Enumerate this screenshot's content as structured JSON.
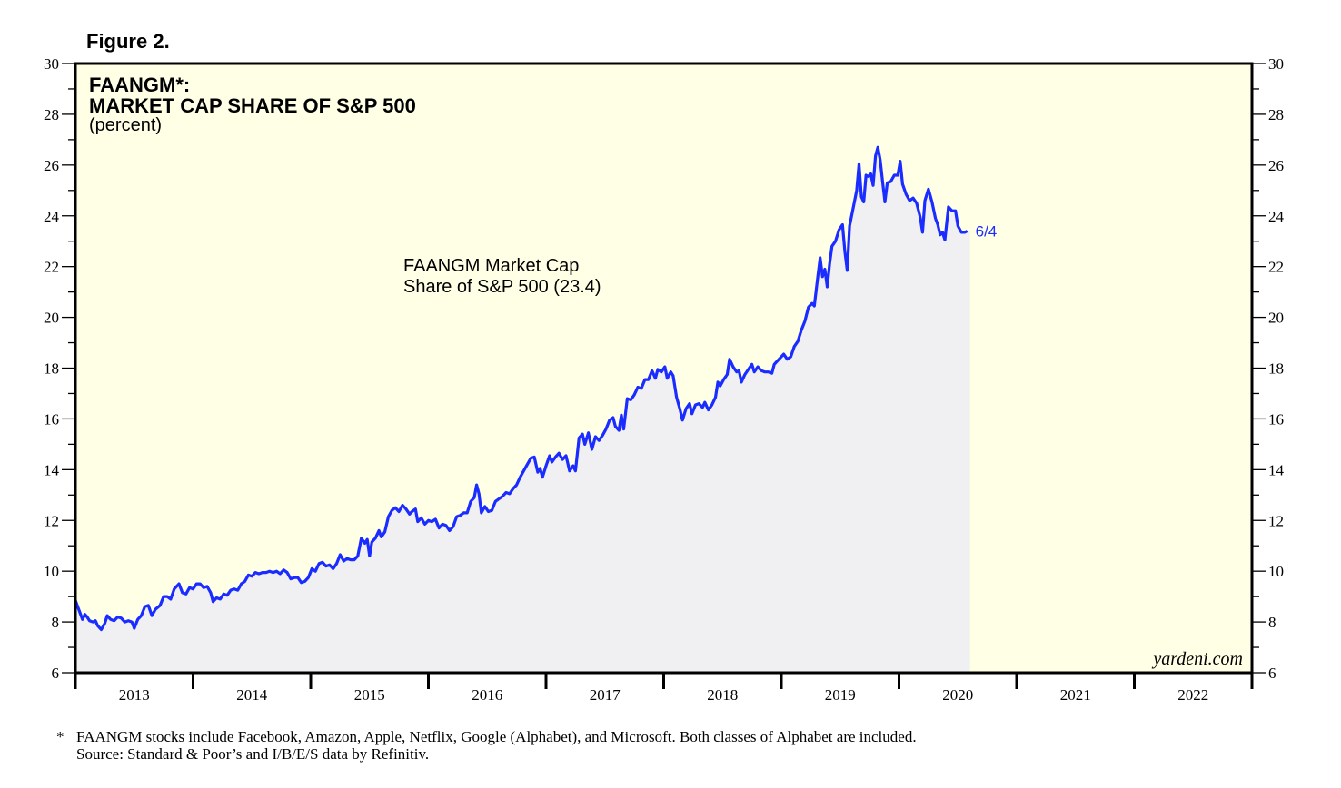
{
  "figure_label": "Figure 2.",
  "colors": {
    "plot_background": "#ffffe6",
    "area_fill": "#f0f0f2",
    "line": "#1a2cff",
    "axis": "#000000"
  },
  "footnotes": {
    "line1_marker": "*",
    "line1": "FAANGM stocks include Facebook, Amazon, Apple, Netflix, Google (Alphabet), and Microsoft. Both classes of Alphabet are included.",
    "line2": "Source: Standard & Poor’s and I/B/E/S data by Refinitiv."
  },
  "chart_data": {
    "type": "area",
    "title_line1": "FAANGM*:",
    "title_line2": "MARKET CAP SHARE OF S&P 500",
    "subtitle": "(percent)",
    "xlabel": "",
    "ylabel": "",
    "xlim": [
      2013,
      2023
    ],
    "ylim": [
      6,
      30
    ],
    "y_ticks_major": [
      6,
      8,
      10,
      12,
      14,
      16,
      18,
      20,
      22,
      24,
      26,
      28,
      30
    ],
    "y_tick_labels": [
      "6",
      "8",
      "10",
      "12",
      "14",
      "16",
      "18",
      "20",
      "22",
      "24",
      "26",
      "28",
      "30"
    ],
    "x_tick_labels": [
      "2013",
      "2014",
      "2015",
      "2016",
      "2017",
      "2018",
      "2019",
      "2020",
      "2021",
      "2022"
    ],
    "grid": false,
    "annotation": {
      "line1": "FAANGM Market Cap",
      "line2": "Share of S&P 500 (23.4)"
    },
    "end_label": "6/4",
    "source_credit": "yardeni.com",
    "series": [
      {
        "name": "FAANGM Market Cap Share of S&P 500",
        "latest_value": 23.4,
        "points": [
          [
            2013.0,
            8.85
          ],
          [
            2013.02,
            8.6
          ],
          [
            2013.04,
            8.35
          ],
          [
            2013.06,
            8.1
          ],
          [
            2013.08,
            8.3
          ],
          [
            2013.1,
            8.2
          ],
          [
            2013.12,
            8.05
          ],
          [
            2013.15,
            8.0
          ],
          [
            2013.17,
            8.05
          ],
          [
            2013.19,
            7.85
          ],
          [
            2013.22,
            7.7
          ],
          [
            2013.25,
            7.95
          ],
          [
            2013.27,
            8.25
          ],
          [
            2013.3,
            8.1
          ],
          [
            2013.33,
            8.05
          ],
          [
            2013.36,
            8.2
          ],
          [
            2013.39,
            8.15
          ],
          [
            2013.42,
            8.0
          ],
          [
            2013.45,
            8.05
          ],
          [
            2013.48,
            8.0
          ],
          [
            2013.5,
            7.75
          ],
          [
            2013.53,
            8.1
          ],
          [
            2013.56,
            8.25
          ],
          [
            2013.59,
            8.6
          ],
          [
            2013.62,
            8.65
          ],
          [
            2013.65,
            8.25
          ],
          [
            2013.68,
            8.5
          ],
          [
            2013.72,
            8.65
          ],
          [
            2013.75,
            9.0
          ],
          [
            2013.78,
            9.0
          ],
          [
            2013.81,
            8.9
          ],
          [
            2013.84,
            9.3
          ],
          [
            2013.88,
            9.5
          ],
          [
            2013.91,
            9.15
          ],
          [
            2013.94,
            9.1
          ],
          [
            2013.97,
            9.35
          ],
          [
            2014.0,
            9.3
          ],
          [
            2014.03,
            9.5
          ],
          [
            2014.06,
            9.5
          ],
          [
            2014.09,
            9.35
          ],
          [
            2014.12,
            9.4
          ],
          [
            2014.15,
            9.15
          ],
          [
            2014.17,
            8.8
          ],
          [
            2014.2,
            8.95
          ],
          [
            2014.23,
            8.9
          ],
          [
            2014.26,
            9.1
          ],
          [
            2014.29,
            9.05
          ],
          [
            2014.32,
            9.25
          ],
          [
            2014.35,
            9.3
          ],
          [
            2014.38,
            9.25
          ],
          [
            2014.41,
            9.5
          ],
          [
            2014.44,
            9.6
          ],
          [
            2014.47,
            9.85
          ],
          [
            2014.5,
            9.8
          ],
          [
            2014.53,
            9.95
          ],
          [
            2014.56,
            9.9
          ],
          [
            2014.59,
            9.95
          ],
          [
            2014.62,
            9.95
          ],
          [
            2014.65,
            10.0
          ],
          [
            2014.68,
            9.95
          ],
          [
            2014.71,
            10.0
          ],
          [
            2014.74,
            9.9
          ],
          [
            2014.77,
            10.05
          ],
          [
            2014.8,
            9.95
          ],
          [
            2014.83,
            9.7
          ],
          [
            2014.86,
            9.75
          ],
          [
            2014.89,
            9.75
          ],
          [
            2014.92,
            9.55
          ],
          [
            2014.95,
            9.6
          ],
          [
            2014.98,
            9.75
          ],
          [
            2015.01,
            10.1
          ],
          [
            2015.04,
            10.0
          ],
          [
            2015.07,
            10.3
          ],
          [
            2015.1,
            10.35
          ],
          [
            2015.13,
            10.2
          ],
          [
            2015.16,
            10.25
          ],
          [
            2015.19,
            10.1
          ],
          [
            2015.22,
            10.3
          ],
          [
            2015.25,
            10.65
          ],
          [
            2015.28,
            10.4
          ],
          [
            2015.31,
            10.5
          ],
          [
            2015.34,
            10.45
          ],
          [
            2015.37,
            10.45
          ],
          [
            2015.4,
            10.6
          ],
          [
            2015.43,
            11.3
          ],
          [
            2015.46,
            11.1
          ],
          [
            2015.48,
            11.25
          ],
          [
            2015.5,
            10.6
          ],
          [
            2015.52,
            11.15
          ],
          [
            2015.55,
            11.3
          ],
          [
            2015.58,
            11.6
          ],
          [
            2015.6,
            11.35
          ],
          [
            2015.63,
            11.55
          ],
          [
            2015.66,
            12.15
          ],
          [
            2015.69,
            12.4
          ],
          [
            2015.72,
            12.5
          ],
          [
            2015.75,
            12.35
          ],
          [
            2015.78,
            12.6
          ],
          [
            2015.81,
            12.45
          ],
          [
            2015.84,
            12.25
          ],
          [
            2015.86,
            12.35
          ],
          [
            2015.89,
            12.45
          ],
          [
            2015.91,
            11.95
          ],
          [
            2015.94,
            12.1
          ],
          [
            2015.97,
            11.85
          ],
          [
            2016.0,
            12.0
          ],
          [
            2016.03,
            11.95
          ],
          [
            2016.06,
            12.05
          ],
          [
            2016.09,
            11.7
          ],
          [
            2016.12,
            11.85
          ],
          [
            2016.15,
            11.8
          ],
          [
            2016.18,
            11.6
          ],
          [
            2016.21,
            11.75
          ],
          [
            2016.24,
            12.15
          ],
          [
            2016.27,
            12.2
          ],
          [
            2016.3,
            12.3
          ],
          [
            2016.33,
            12.3
          ],
          [
            2016.36,
            12.75
          ],
          [
            2016.39,
            12.9
          ],
          [
            2016.41,
            13.4
          ],
          [
            2016.43,
            13.05
          ],
          [
            2016.45,
            12.3
          ],
          [
            2016.48,
            12.55
          ],
          [
            2016.51,
            12.35
          ],
          [
            2016.54,
            12.4
          ],
          [
            2016.57,
            12.75
          ],
          [
            2016.6,
            12.85
          ],
          [
            2016.63,
            12.95
          ],
          [
            2016.66,
            13.1
          ],
          [
            2016.69,
            13.05
          ],
          [
            2016.72,
            13.25
          ],
          [
            2016.75,
            13.4
          ],
          [
            2016.78,
            13.7
          ],
          [
            2016.81,
            13.95
          ],
          [
            2016.84,
            14.2
          ],
          [
            2016.87,
            14.45
          ],
          [
            2016.9,
            14.5
          ],
          [
            2016.93,
            13.9
          ],
          [
            2016.95,
            14.05
          ],
          [
            2016.97,
            13.7
          ],
          [
            2017.0,
            14.15
          ],
          [
            2017.03,
            14.55
          ],
          [
            2017.05,
            14.3
          ],
          [
            2017.08,
            14.5
          ],
          [
            2017.11,
            14.65
          ],
          [
            2017.14,
            14.4
          ],
          [
            2017.17,
            14.55
          ],
          [
            2017.2,
            13.95
          ],
          [
            2017.23,
            14.15
          ],
          [
            2017.25,
            13.95
          ],
          [
            2017.28,
            15.25
          ],
          [
            2017.31,
            15.4
          ],
          [
            2017.33,
            15.0
          ],
          [
            2017.36,
            15.45
          ],
          [
            2017.39,
            14.8
          ],
          [
            2017.42,
            15.3
          ],
          [
            2017.45,
            15.15
          ],
          [
            2017.48,
            15.35
          ],
          [
            2017.51,
            15.6
          ],
          [
            2017.54,
            15.95
          ],
          [
            2017.57,
            16.05
          ],
          [
            2017.59,
            15.7
          ],
          [
            2017.62,
            15.55
          ],
          [
            2017.64,
            16.15
          ],
          [
            2017.66,
            15.6
          ],
          [
            2017.69,
            16.8
          ],
          [
            2017.72,
            16.75
          ],
          [
            2017.75,
            16.95
          ],
          [
            2017.78,
            17.25
          ],
          [
            2017.81,
            17.2
          ],
          [
            2017.84,
            17.55
          ],
          [
            2017.87,
            17.55
          ],
          [
            2017.9,
            17.9
          ],
          [
            2017.93,
            17.6
          ],
          [
            2017.95,
            17.95
          ],
          [
            2017.98,
            17.85
          ],
          [
            2018.01,
            18.05
          ],
          [
            2018.03,
            17.6
          ],
          [
            2018.06,
            17.85
          ],
          [
            2018.08,
            17.7
          ],
          [
            2018.11,
            16.85
          ],
          [
            2018.14,
            16.35
          ],
          [
            2018.16,
            15.95
          ],
          [
            2018.19,
            16.4
          ],
          [
            2018.22,
            16.6
          ],
          [
            2018.24,
            16.2
          ],
          [
            2018.27,
            16.55
          ],
          [
            2018.3,
            16.6
          ],
          [
            2018.33,
            16.45
          ],
          [
            2018.35,
            16.65
          ],
          [
            2018.38,
            16.35
          ],
          [
            2018.41,
            16.55
          ],
          [
            2018.44,
            16.85
          ],
          [
            2018.46,
            17.45
          ],
          [
            2018.48,
            17.3
          ],
          [
            2018.51,
            17.55
          ],
          [
            2018.54,
            17.75
          ],
          [
            2018.56,
            18.35
          ],
          [
            2018.59,
            18.05
          ],
          [
            2018.62,
            17.85
          ],
          [
            2018.64,
            17.9
          ],
          [
            2018.66,
            17.45
          ],
          [
            2018.69,
            17.75
          ],
          [
            2018.72,
            17.95
          ],
          [
            2018.75,
            18.15
          ],
          [
            2018.77,
            17.85
          ],
          [
            2018.8,
            18.05
          ],
          [
            2018.83,
            17.9
          ],
          [
            2018.86,
            17.85
          ],
          [
            2018.89,
            17.85
          ],
          [
            2018.92,
            17.8
          ],
          [
            2018.94,
            18.15
          ],
          [
            2018.96,
            18.25
          ],
          [
            2018.99,
            18.4
          ],
          [
            2019.02,
            18.55
          ],
          [
            2019.05,
            18.35
          ],
          [
            2019.08,
            18.45
          ],
          [
            2019.11,
            18.85
          ],
          [
            2019.14,
            19.05
          ],
          [
            2019.17,
            19.5
          ],
          [
            2019.2,
            19.85
          ],
          [
            2019.23,
            20.4
          ],
          [
            2019.26,
            20.55
          ],
          [
            2019.28,
            20.45
          ],
          [
            2019.31,
            21.6
          ],
          [
            2019.33,
            22.35
          ],
          [
            2019.35,
            21.6
          ],
          [
            2019.37,
            21.9
          ],
          [
            2019.39,
            21.2
          ],
          [
            2019.41,
            22.1
          ],
          [
            2019.43,
            22.8
          ],
          [
            2019.46,
            23.0
          ],
          [
            2019.49,
            23.45
          ],
          [
            2019.52,
            23.65
          ],
          [
            2019.54,
            22.6
          ],
          [
            2019.56,
            21.85
          ],
          [
            2019.58,
            23.6
          ],
          [
            2019.61,
            24.3
          ],
          [
            2019.64,
            25.0
          ],
          [
            2019.66,
            26.05
          ],
          [
            2019.68,
            24.75
          ],
          [
            2019.7,
            24.55
          ],
          [
            2019.72,
            25.6
          ],
          [
            2019.74,
            25.55
          ],
          [
            2019.76,
            25.65
          ],
          [
            2019.78,
            25.2
          ],
          [
            2019.8,
            26.35
          ],
          [
            2019.82,
            26.7
          ],
          [
            2019.84,
            26.2
          ],
          [
            2019.86,
            25.35
          ],
          [
            2019.88,
            24.55
          ],
          [
            2019.9,
            25.3
          ],
          [
            2019.93,
            25.35
          ],
          [
            2019.96,
            25.6
          ],
          [
            2019.99,
            25.6
          ],
          [
            2020.01,
            26.15
          ],
          [
            2020.03,
            25.25
          ],
          [
            2020.06,
            24.85
          ],
          [
            2020.09,
            24.6
          ],
          [
            2020.12,
            24.7
          ],
          [
            2020.15,
            24.5
          ],
          [
            2020.18,
            23.95
          ],
          [
            2020.2,
            23.35
          ],
          [
            2020.22,
            24.6
          ],
          [
            2020.25,
            25.05
          ],
          [
            2020.28,
            24.55
          ],
          [
            2020.31,
            23.9
          ],
          [
            2020.33,
            23.65
          ],
          [
            2020.35,
            23.25
          ],
          [
            2020.37,
            23.35
          ],
          [
            2020.39,
            23.05
          ],
          [
            2020.42,
            24.35
          ],
          [
            2020.45,
            24.2
          ],
          [
            2020.48,
            24.2
          ],
          [
            2020.5,
            23.6
          ],
          [
            2020.53,
            23.35
          ],
          [
            2020.56,
            23.35
          ],
          [
            2020.58,
            23.4
          ]
        ]
      }
    ]
  }
}
